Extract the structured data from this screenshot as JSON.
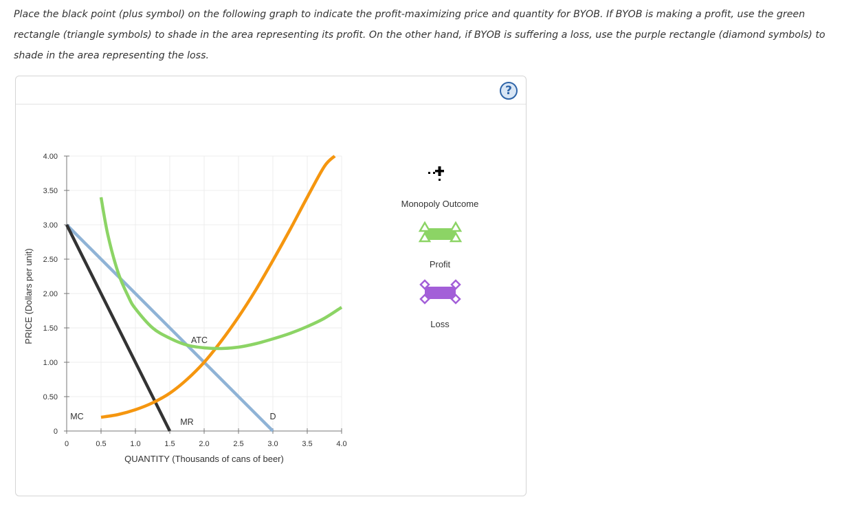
{
  "instructions": "Place the black point (plus symbol) on the following graph to indicate the profit-maximizing price and quantity for BYOB. If BYOB is making a profit, use the green rectangle (triangle symbols) to shade in the area representing its profit. On the other hand, if BYOB is suffering a loss, use the purple rectangle (diamond symbols) to shade in the area representing the loss.",
  "help": {
    "label": "?"
  },
  "legend": {
    "items": [
      {
        "key": "monopoly",
        "label": "Monopoly Outcome",
        "icon": "plus-point-icon",
        "color": "#000000"
      },
      {
        "key": "profit",
        "label": "Profit",
        "icon": "triangle-rectangle-icon",
        "color": "#8cd465"
      },
      {
        "key": "loss",
        "label": "Loss",
        "icon": "diamond-rectangle-icon",
        "color": "#a35fd8"
      }
    ]
  },
  "chart_data": {
    "type": "line",
    "xlabel": "QUANTITY (Thousands of cans of beer)",
    "ylabel": "PRICE (Dollars per unit)",
    "xlim": [
      0,
      4.0
    ],
    "ylim": [
      0,
      4.0
    ],
    "x_ticks": [
      "0",
      "0.5",
      "1.0",
      "1.5",
      "2.0",
      "2.5",
      "3.0",
      "3.5",
      "4.0"
    ],
    "y_ticks": [
      "0",
      "0.50",
      "1.00",
      "1.50",
      "2.00",
      "2.50",
      "3.00",
      "3.50",
      "4.00"
    ],
    "grid": true,
    "series": [
      {
        "name": "D",
        "color": "#8fb3d6",
        "x": [
          0,
          3.0
        ],
        "y": [
          3.0,
          0
        ]
      },
      {
        "name": "MR",
        "color": "#333333",
        "x": [
          0,
          1.5
        ],
        "y": [
          3.0,
          0
        ]
      },
      {
        "name": "MC",
        "color": "#f5960f",
        "x": [
          0.5,
          0.75,
          1.0,
          1.25,
          1.5,
          1.75,
          2.0,
          2.25,
          2.5,
          2.75,
          3.0,
          3.25,
          3.5,
          3.75,
          3.9
        ],
        "y": [
          0.2,
          0.24,
          0.31,
          0.41,
          0.55,
          0.75,
          1.0,
          1.31,
          1.66,
          2.05,
          2.48,
          2.93,
          3.4,
          3.85,
          4.0
        ]
      },
      {
        "name": "ATC",
        "color": "#8cd465",
        "x": [
          0.5,
          0.6,
          0.75,
          0.9,
          1.0,
          1.25,
          1.5,
          1.75,
          2.0,
          2.25,
          2.5,
          2.75,
          3.0,
          3.25,
          3.5,
          3.75,
          4.0
        ],
        "y": [
          3.4,
          2.85,
          2.3,
          1.95,
          1.78,
          1.5,
          1.35,
          1.25,
          1.21,
          1.2,
          1.22,
          1.27,
          1.34,
          1.42,
          1.52,
          1.64,
          1.8
        ]
      }
    ]
  }
}
